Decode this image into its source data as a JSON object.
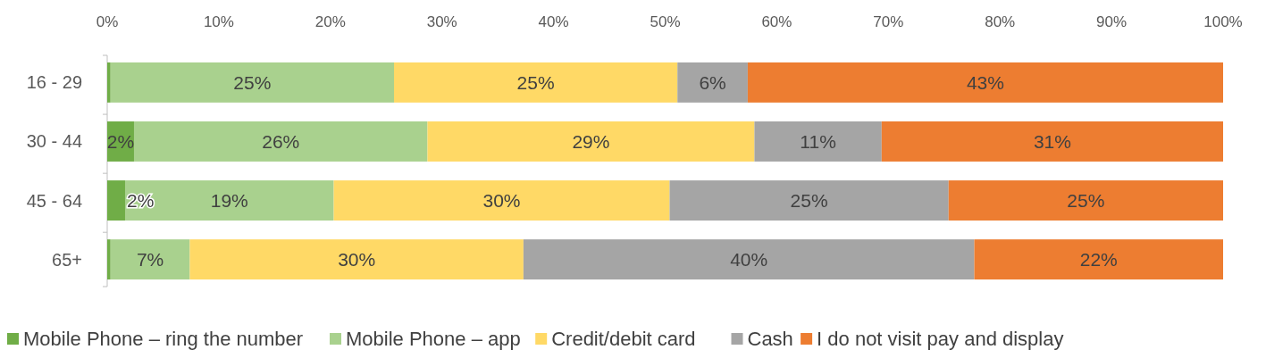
{
  "chart_data": {
    "type": "bar",
    "orientation": "horizontal",
    "stacked": true,
    "categories": [
      "16 - 29",
      "30 - 44",
      "45 - 64",
      "65+"
    ],
    "xlim": [
      0,
      100
    ],
    "xticks": [
      {
        "value": 0,
        "label": "0%"
      },
      {
        "value": 10,
        "label": "10%"
      },
      {
        "value": 20,
        "label": "20%"
      },
      {
        "value": 30,
        "label": "30%"
      },
      {
        "value": 40,
        "label": "40%"
      },
      {
        "value": 50,
        "label": "50%"
      },
      {
        "value": 60,
        "label": "60%"
      },
      {
        "value": 70,
        "label": "70%"
      },
      {
        "value": 80,
        "label": "80%"
      },
      {
        "value": 90,
        "label": "90%"
      },
      {
        "value": 100,
        "label": "100%"
      }
    ],
    "grid": false,
    "legend": "bottom",
    "series": [
      {
        "name": "Mobile Phone – ring the number",
        "color": "#70ad47",
        "values": [
          0.3,
          2.4,
          1.6,
          0.3
        ],
        "value_labels": [
          null,
          "2%",
          "2%",
          null
        ]
      },
      {
        "name": "Mobile Phone – app",
        "color": "#a9d18e",
        "values": [
          25.4,
          26.3,
          18.7,
          7.1
        ],
        "value_labels": [
          "25%",
          "26%",
          "19%",
          "7%"
        ]
      },
      {
        "name": "Credit/debit card",
        "color": "#ffd966",
        "values": [
          25.4,
          29.3,
          30.1,
          29.9
        ],
        "value_labels": [
          "25%",
          "29%",
          "30%",
          "30%"
        ]
      },
      {
        "name": "Cash",
        "color": "#a5a5a5",
        "values": [
          6.3,
          11.4,
          25,
          40.4
        ],
        "value_labels": [
          "6%",
          "11%",
          "25%",
          "40%"
        ]
      },
      {
        "name": "I do not visit pay and display",
        "color": "#ed7d31",
        "values": [
          42.6,
          30.6,
          24.6,
          22.3
        ],
        "value_labels": [
          "43%",
          "31%",
          "25%",
          "22%"
        ]
      }
    ]
  }
}
